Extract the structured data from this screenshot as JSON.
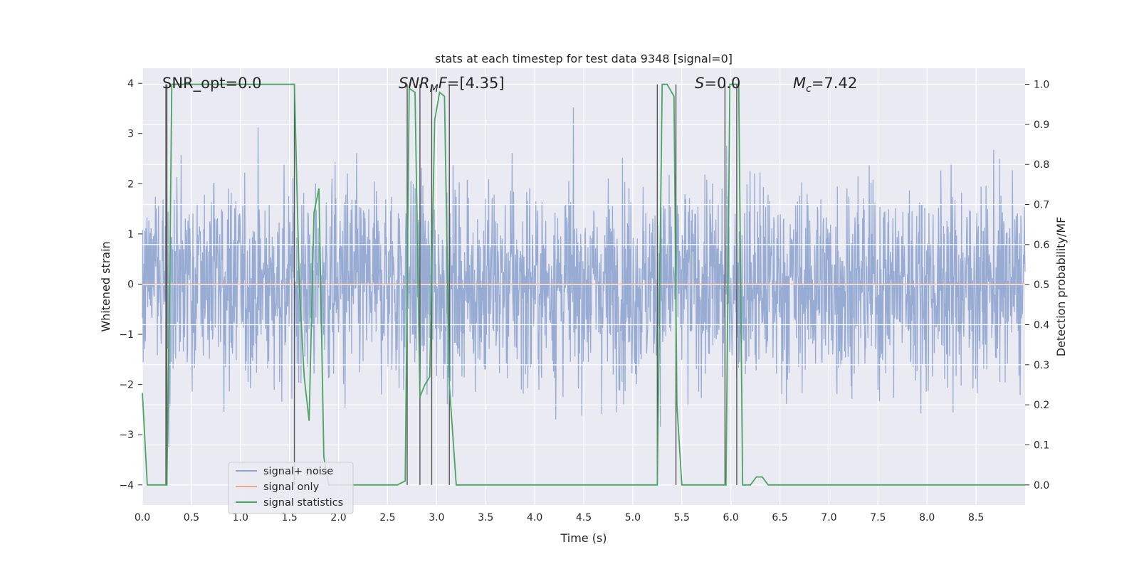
{
  "chart_data": {
    "type": "line",
    "title": "stats at each timestep for test data 9348 [signal=0]",
    "xlabel": "Time (s)",
    "ylabel": "Whitened strain",
    "y2label": "Detection probability/MF",
    "xlim": [
      0.0,
      9.0
    ],
    "ylim": [
      -4.4,
      4.3
    ],
    "y2lim": [
      -0.05,
      1.04
    ],
    "x_ticks": [
      "0.0",
      "0.5",
      "1.0",
      "1.5",
      "2.0",
      "2.5",
      "3.0",
      "3.5",
      "4.0",
      "4.5",
      "5.0",
      "5.5",
      "6.0",
      "6.5",
      "7.0",
      "7.5",
      "8.0",
      "8.5"
    ],
    "y_ticks": [
      "−4",
      "−3",
      "−2",
      "−1",
      "0",
      "1",
      "2",
      "3",
      "4"
    ],
    "y2_ticks": [
      "0.0",
      "0.1",
      "0.2",
      "0.3",
      "0.4",
      "0.5",
      "0.6",
      "0.7",
      "0.8",
      "0.9",
      "1.0"
    ],
    "grid": true,
    "legend_position": "lower-left",
    "annotations": {
      "snr_opt": "SNR_opt=0.0",
      "snr_mf_sym": "SNR",
      "snr_mf_sub": "M",
      "snr_mf_sym2": "F",
      "snr_mf_val": "=[4.35]",
      "s_sym": "S",
      "s_val": "=0.0",
      "mc_sym": "M",
      "mc_sub": "c",
      "mc_val": "=7.42"
    },
    "series": [
      {
        "name": "signal+ noise",
        "color": "#8fa5cf",
        "axis": "left",
        "description": "whitened strain noise, approx. gaussian, std ~1, spikes up to ~4",
        "std": 1.0,
        "sample_rate_hz": 256
      },
      {
        "name": "signal only",
        "color": "#e8a88a",
        "axis": "left",
        "x": [
          0.0,
          9.0
        ],
        "y": [
          0.0,
          0.0
        ]
      },
      {
        "name": "signal statistics",
        "color": "#4aa564",
        "axis": "right",
        "x": [
          0.0,
          0.05,
          0.25,
          0.28,
          0.3,
          1.5,
          1.55,
          1.6,
          1.65,
          1.7,
          1.75,
          1.8,
          1.85,
          1.9,
          1.95,
          2.6,
          2.68,
          2.72,
          2.78,
          2.83,
          2.88,
          2.93,
          2.98,
          3.03,
          3.08,
          3.13,
          3.2,
          3.3,
          5.25,
          5.3,
          5.35,
          5.42,
          5.45,
          5.5,
          5.95,
          5.99,
          6.03,
          6.08,
          6.12,
          6.2,
          6.26,
          6.32,
          6.38,
          9.0
        ],
        "y": [
          0.23,
          0.0,
          0.0,
          0.53,
          1.0,
          1.0,
          1.0,
          0.5,
          0.27,
          0.16,
          0.68,
          0.74,
          0.07,
          0.0,
          0.0,
          0.0,
          0.01,
          0.99,
          0.98,
          0.22,
          0.25,
          0.27,
          0.91,
          0.98,
          0.97,
          0.25,
          0.0,
          0.0,
          0.0,
          1.0,
          1.0,
          0.97,
          0.2,
          0.0,
          0.0,
          1.0,
          1.0,
          1.0,
          0.0,
          0.0,
          0.02,
          0.02,
          0.0,
          0.0
        ]
      }
    ],
    "vertical_markers_x": [
      0.24,
      0.25,
      1.55,
      2.7,
      2.83,
      2.95,
      3.13,
      5.25,
      5.44,
      5.94,
      6.06
    ]
  },
  "legend": {
    "items": [
      {
        "label": "signal+ noise",
        "color": "#8fa5cf"
      },
      {
        "label": "signal only",
        "color": "#e8a88a"
      },
      {
        "label": "signal statistics",
        "color": "#4aa564"
      }
    ]
  }
}
